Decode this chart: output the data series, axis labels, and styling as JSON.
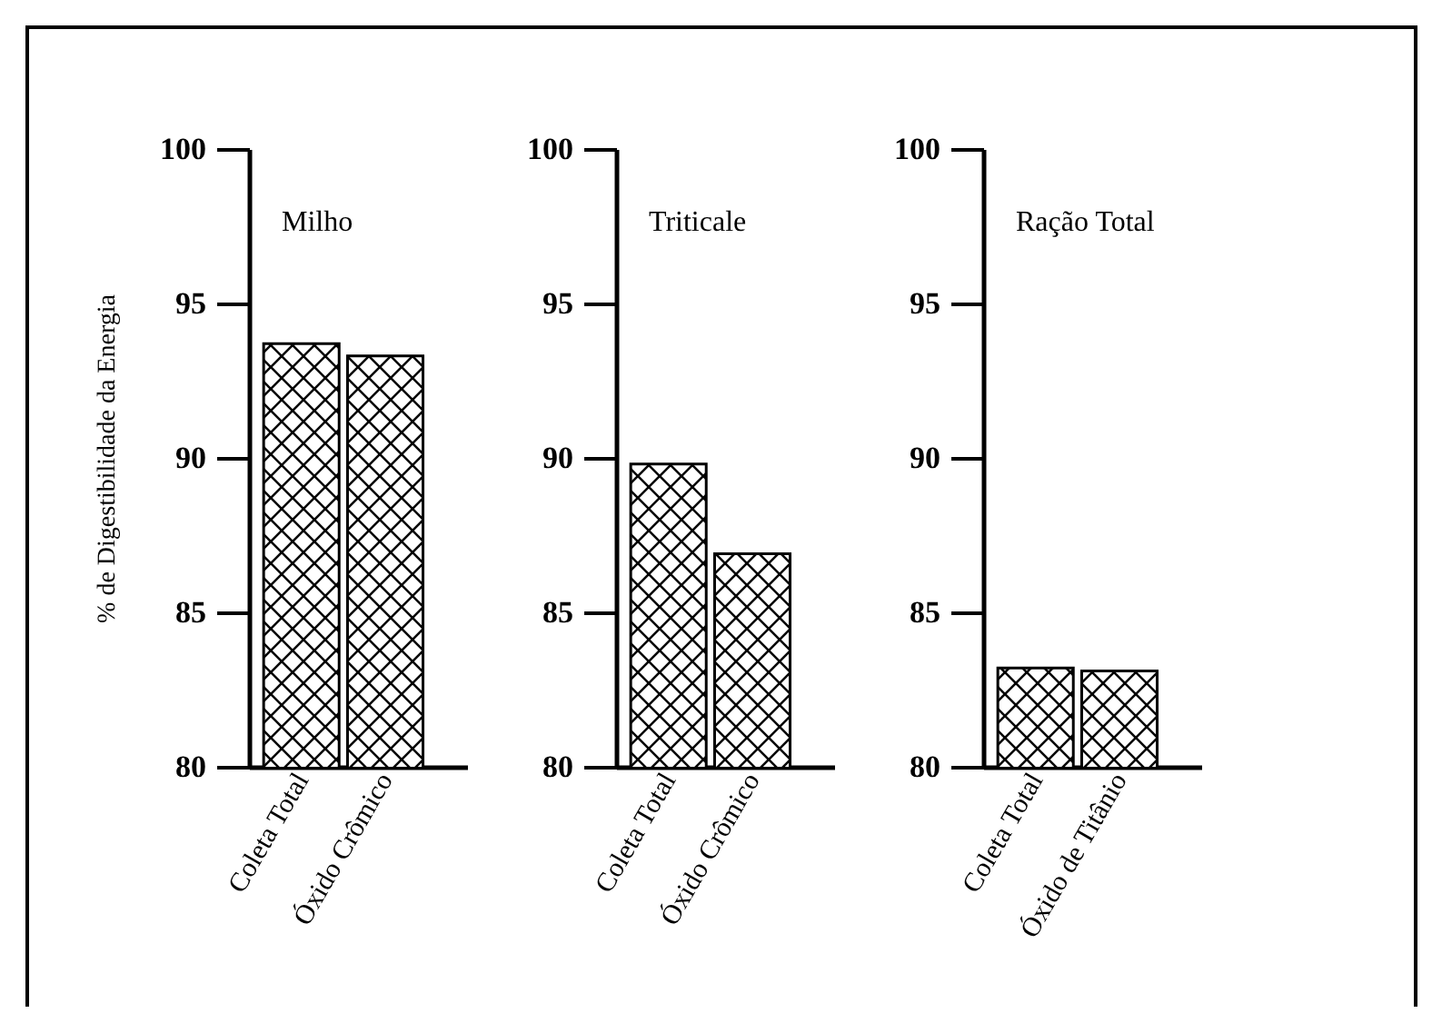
{
  "chart_data": [
    {
      "type": "bar",
      "title": "Milho",
      "ylabel": "% de Digestibilidade da Energia",
      "categories": [
        "Coleta Total",
        "Óxido Crômico"
      ],
      "values": [
        93.7,
        93.3
      ],
      "color": "#ffffff",
      "ylim": [
        80,
        100
      ],
      "yticks": [
        80,
        85,
        90,
        95,
        100
      ],
      "grid": false
    },
    {
      "type": "bar",
      "title": "Triticale",
      "categories": [
        "Coleta Total",
        "Óxido Crômico"
      ],
      "values": [
        89.8,
        86.9
      ],
      "color": "#ffffff",
      "ylim": [
        80,
        100
      ],
      "yticks": [
        80,
        85,
        90,
        95,
        100
      ],
      "grid": false
    },
    {
      "type": "bar",
      "title": "Ração Total",
      "categories": [
        "Coleta Total",
        "Óxido de Titânio"
      ],
      "values": [
        83.2,
        83.1
      ],
      "color": "#ffffff",
      "ylim": [
        80,
        100
      ],
      "yticks": [
        80,
        85,
        90,
        95,
        100
      ],
      "grid": false
    }
  ]
}
